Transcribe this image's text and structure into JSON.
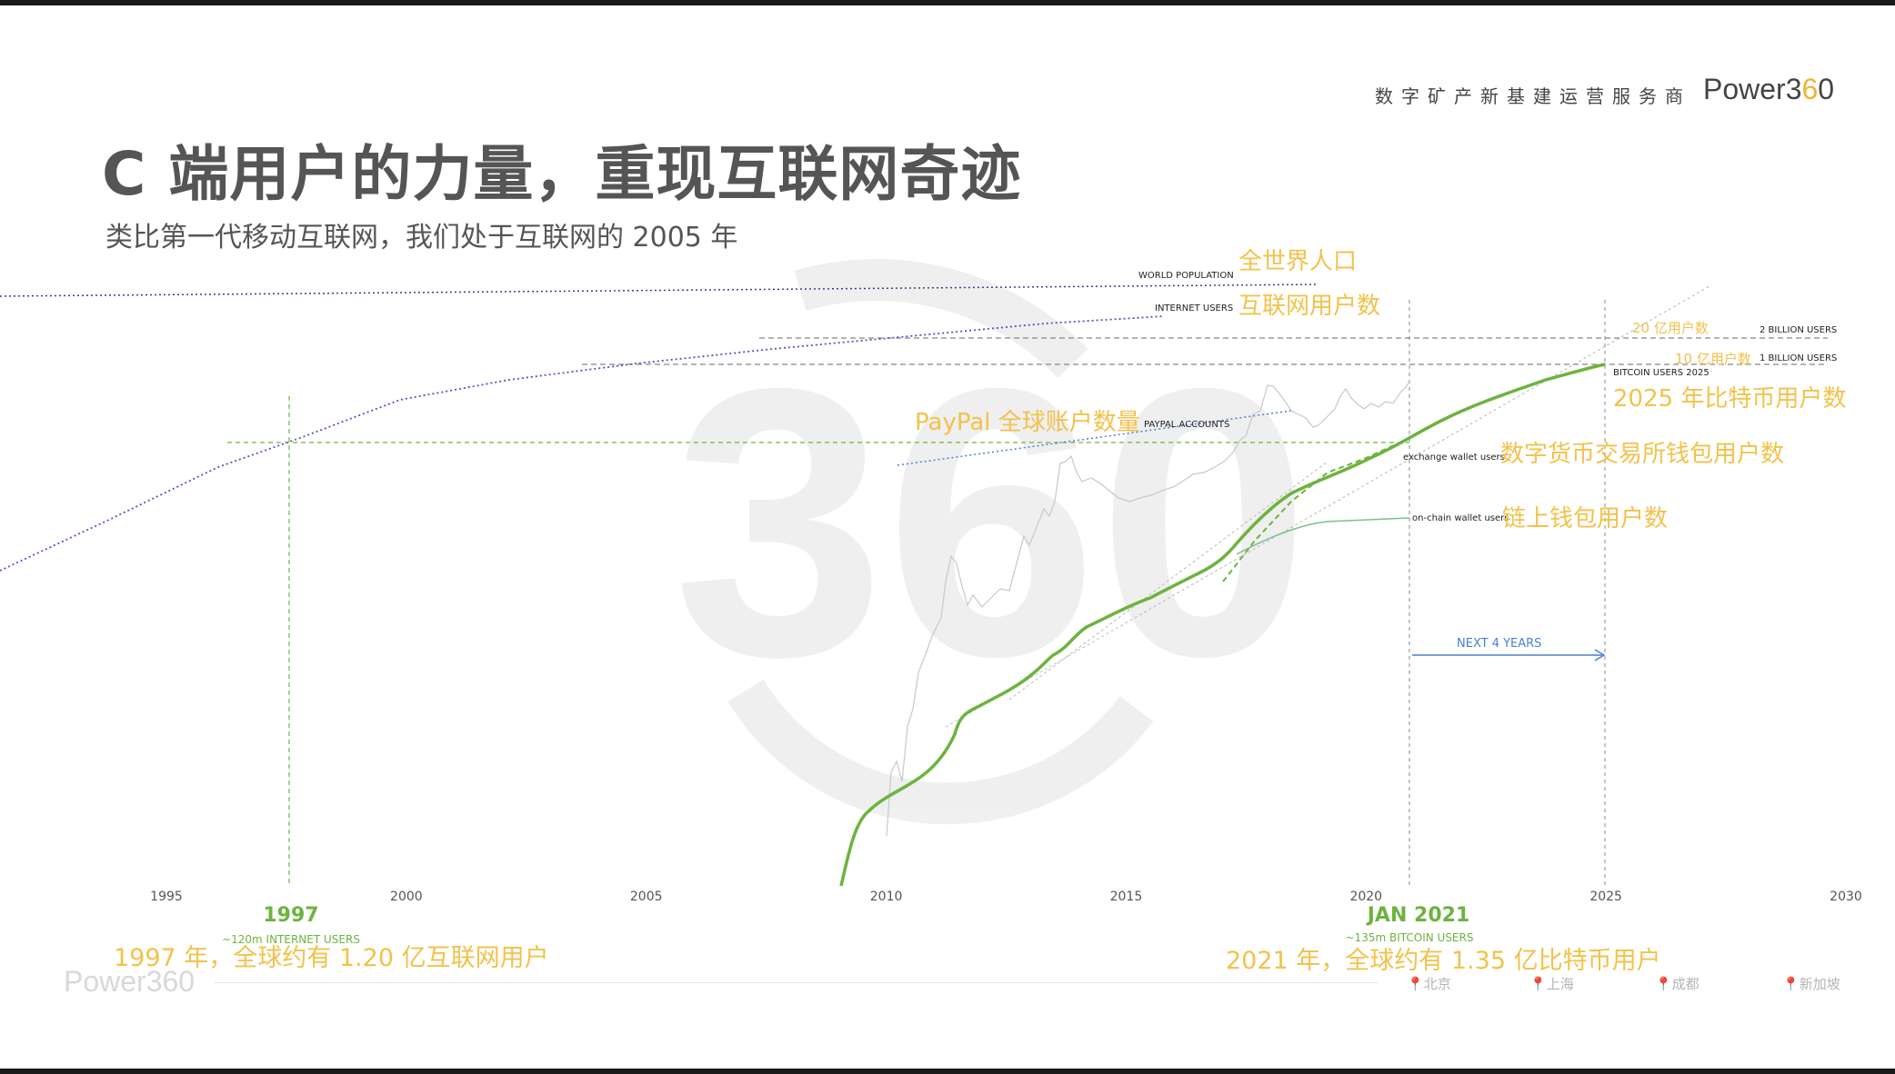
{
  "header": {
    "tagline": "数字矿产新基建运营服务商",
    "logo": "Power360",
    "title": "C 端用户的力量，重现互联网奇迹",
    "subtitle": "类比第一代移动互联网，我们处于互联网的 2005 年"
  },
  "footer": {
    "logo": "Power360",
    "locations": [
      "北京",
      "上海",
      "成都",
      "新加坡"
    ]
  },
  "colors": {
    "green": "#6db33f",
    "annotation_gold": "#f2c24a",
    "purple": "#5b4fc7",
    "blue": "#4a7fd4",
    "gray": "#9a9a9a"
  },
  "chart_data": {
    "type": "line",
    "xlim": [
      1995,
      2030
    ],
    "x_ticks": [
      "1995",
      "2000",
      "2005",
      "2010",
      "2015",
      "2020",
      "2025",
      "2030"
    ],
    "log_scale": true,
    "grid": false,
    "reference_lines": [
      {
        "label_en": "2 BILLION USERS",
        "label_cn": "20 亿用户数"
      },
      {
        "label_en": "1 BILLION USERS",
        "label_cn": "10 亿用户数"
      }
    ],
    "series": [
      {
        "name": "WORLD POPULATION",
        "cn": "全世界人口"
      },
      {
        "name": "INTERNET USERS",
        "cn": "互联网用户数"
      },
      {
        "name": "PAYPAL ACCOUNTS",
        "cn": "PayPal 全球账户数量"
      },
      {
        "name": "BITCOIN USERS 2025",
        "cn": "2025 年比特币用户数"
      },
      {
        "name": "exchange wallet users",
        "cn": "数字货币交易所钱包用户数"
      },
      {
        "name": "on-chain wallet users",
        "cn": "链上钱包用户数"
      }
    ],
    "markers": [
      {
        "x": 1997,
        "label": "1997",
        "sub": "~120m INTERNET USERS",
        "cn": "1997 年，全球约有 1.20 亿互联网用户"
      },
      {
        "x": 2021,
        "label": "JAN 2021",
        "sub": "~135m BITCOIN USERS",
        "cn": "2021 年，全球约有 1.35 亿比特币用户"
      }
    ],
    "arrow_label": "NEXT 4 YEARS"
  }
}
